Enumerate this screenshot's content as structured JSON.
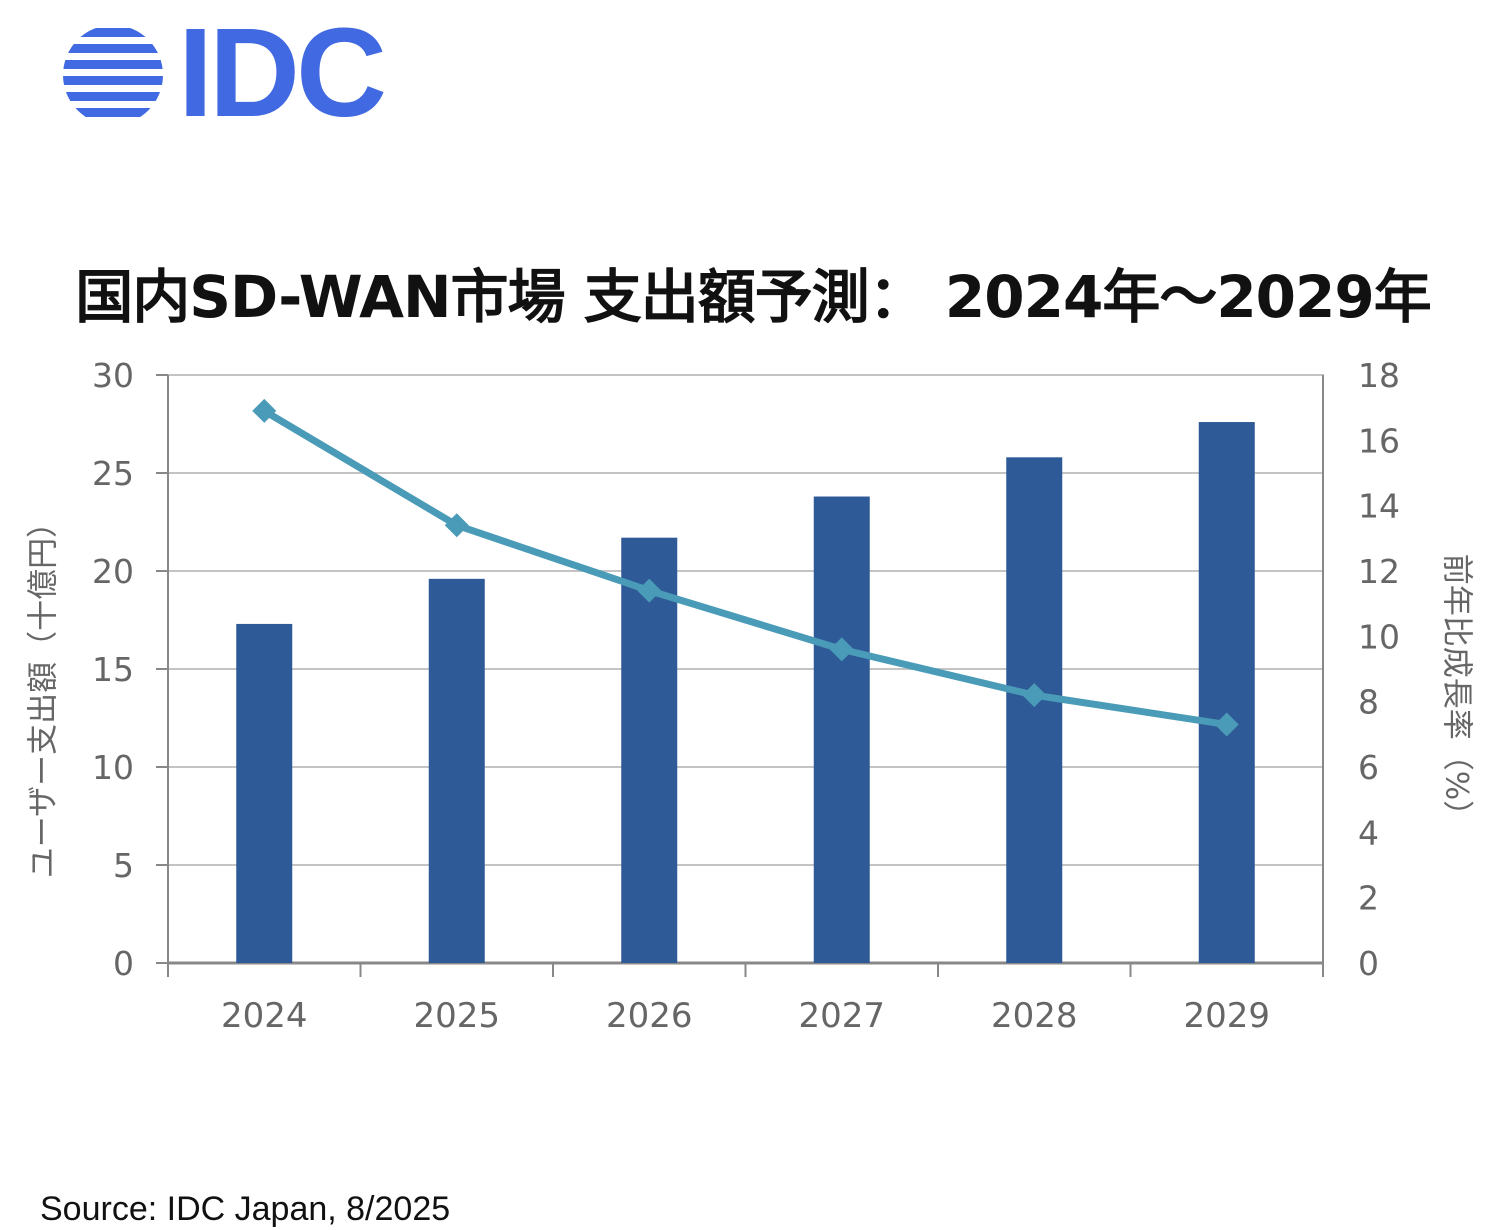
{
  "logo": {
    "text": "IDC",
    "color": "#4169e1"
  },
  "title": "国内SD-WAN市場 支出額予測： 2024年～2029年",
  "source": "Source: IDC Japan, 8/2025",
  "chart_data": {
    "type": "bar+line",
    "title": "国内SD-WAN市場 支出額予測： 2024年～2029年",
    "categories": [
      "2024",
      "2025",
      "2026",
      "2027",
      "2028",
      "2029"
    ],
    "y_left": {
      "label": "ユーザー支出額（十億円）",
      "ylim": [
        0,
        30
      ],
      "ticks": [
        "0",
        "5",
        "10",
        "15",
        "20",
        "25",
        "30"
      ]
    },
    "y_right": {
      "label": "前年比成長率（%）",
      "ylim": [
        0,
        18
      ],
      "ticks": [
        "0",
        "2",
        "4",
        "6",
        "8",
        "10",
        "12",
        "14",
        "16",
        "18"
      ]
    },
    "series": [
      {
        "type": "bar",
        "axis": "left",
        "values": [
          17.3,
          19.6,
          21.7,
          23.8,
          25.8,
          27.6
        ],
        "color": "#2e5a97"
      },
      {
        "type": "line",
        "axis": "right",
        "values": [
          16.9,
          13.4,
          11.4,
          9.6,
          8.2,
          7.3
        ],
        "color": "#4a9bb7"
      }
    ],
    "grid": true,
    "legend": "none"
  }
}
